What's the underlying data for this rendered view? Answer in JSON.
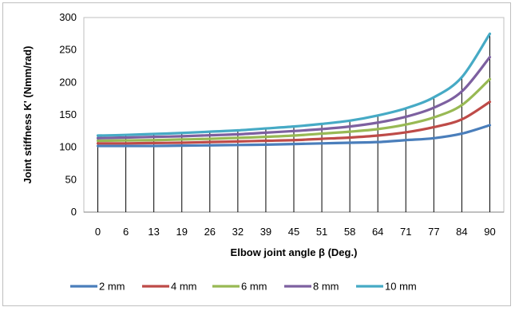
{
  "chart_data": {
    "type": "line",
    "title": "",
    "xlabel": "Elbow joint angle β (Deg.)",
    "ylabel": "Joint stiffness K' (Nmm/rad)",
    "ylim": [
      0,
      300
    ],
    "yticks": [
      0,
      50,
      100,
      150,
      200,
      250,
      300
    ],
    "categories": [
      "0",
      "6",
      "13",
      "19",
      "26",
      "32",
      "39",
      "45",
      "51",
      "58",
      "64",
      "71",
      "77",
      "84",
      "90"
    ],
    "grid": "vertical drop lines at each category",
    "legend_position": "bottom",
    "series": [
      {
        "name": "2 mm",
        "color": "#4a7ebb",
        "values": [
          102,
          102,
          102,
          102.5,
          103,
          103.5,
          104,
          105,
          106,
          107,
          108,
          111,
          114,
          121,
          134
        ]
      },
      {
        "name": "4 mm",
        "color": "#be4b48",
        "values": [
          106,
          106,
          106.5,
          107,
          108,
          109,
          110,
          111,
          113,
          115,
          118,
          123,
          131,
          143,
          170
        ]
      },
      {
        "name": "6 mm",
        "color": "#98b954",
        "values": [
          110,
          110.5,
          111,
          112,
          113,
          114.5,
          116,
          118,
          121,
          124,
          128,
          135,
          146,
          165,
          205
        ]
      },
      {
        "name": "8 mm",
        "color": "#7d60a0",
        "values": [
          114,
          115,
          116,
          117,
          118.5,
          120,
          122.5,
          125,
          128,
          132,
          138,
          147,
          161,
          186,
          239
        ]
      },
      {
        "name": "10 mm",
        "color": "#46aac5",
        "values": [
          118,
          119,
          120.5,
          122,
          124,
          126,
          129,
          132,
          136,
          141,
          149,
          160,
          177,
          208,
          275
        ]
      }
    ]
  }
}
